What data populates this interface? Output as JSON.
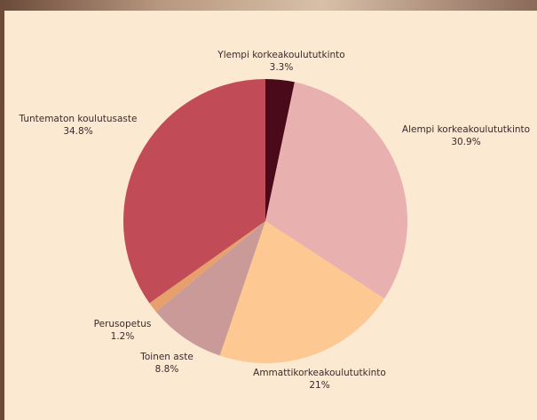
{
  "chart_data": {
    "type": "pie",
    "categories": [
      "Ylempi korkeakoulututkinto",
      "Alempi korkeakoulututkinto",
      "Ammattikorkeakoulututkinto",
      "Toinen aste",
      "Perusopetus",
      "Tuntematon koulutusaste"
    ],
    "values": [
      3.3,
      30.9,
      21,
      8.8,
      1.2,
      34.8
    ],
    "value_labels": [
      "3.3%",
      "30.9%",
      "21%",
      "8.8%",
      "1.2%",
      "34.8%"
    ],
    "colors": [
      "#4a0a1a",
      "#e8b1b0",
      "#fdc891",
      "#c99a98",
      "#e7a06c",
      "#c14b56"
    ]
  }
}
